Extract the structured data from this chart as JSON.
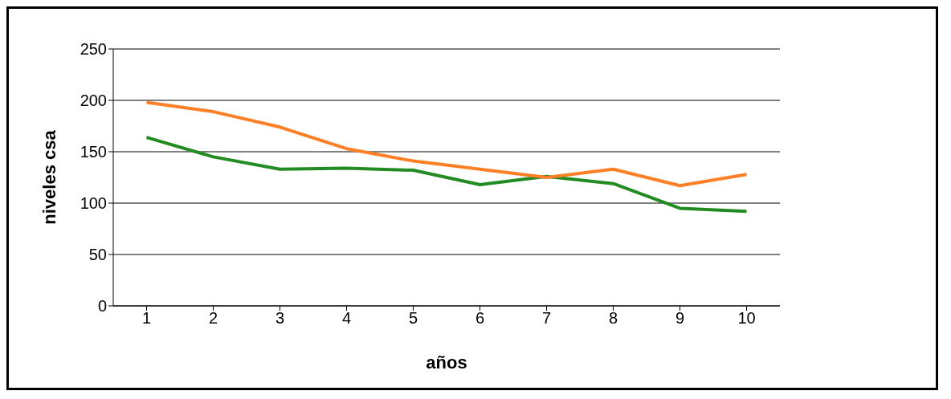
{
  "chart_data": {
    "type": "line",
    "xlabel": "años",
    "ylabel": "niveles csa",
    "categories": [
      "1",
      "2",
      "3",
      "4",
      "5",
      "6",
      "7",
      "8",
      "9",
      "10"
    ],
    "series": [
      {
        "color": "#228b22",
        "values": [
          164,
          145,
          133,
          134,
          132,
          118,
          126,
          119,
          95,
          92
        ]
      },
      {
        "color": "#ff7f27",
        "values": [
          198,
          189,
          174,
          153,
          141,
          133,
          125,
          133,
          117,
          128
        ]
      }
    ],
    "ylim": [
      0,
      250
    ],
    "yticks": [
      0,
      50,
      100,
      150,
      200,
      250
    ],
    "grid": "y",
    "marker": "none",
    "line_style": "solid"
  }
}
